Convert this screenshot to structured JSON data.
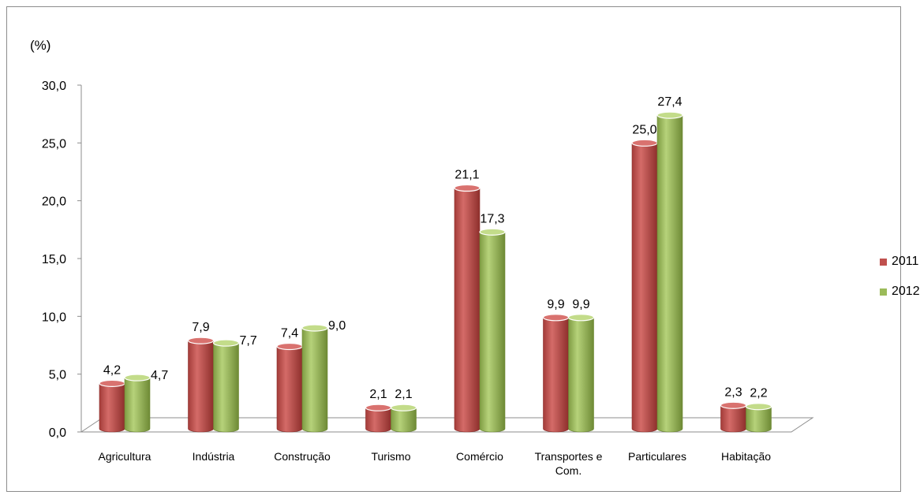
{
  "chart_data": {
    "type": "bar",
    "unit_label": "(%)",
    "categories": [
      "Agricultura",
      "Indústria",
      "Construção",
      "Turismo",
      "Comércio",
      "Transportes e|Com.",
      "Particulares",
      "Habitação"
    ],
    "series": [
      {
        "name": "2011",
        "color": "#c0504d",
        "values": [
          4.2,
          7.9,
          7.4,
          2.1,
          21.1,
          9.9,
          25.0,
          2.3
        ],
        "labels": [
          "4,2",
          "7,9",
          "7,4",
          "2,1",
          "21,1",
          "9,9",
          "25,0",
          "2,3"
        ]
      },
      {
        "name": "2012",
        "color": "#9bbb59",
        "values": [
          4.7,
          7.7,
          9.0,
          2.1,
          17.3,
          9.9,
          27.4,
          2.2
        ],
        "labels": [
          "4,7",
          "7,7",
          "9,0",
          "2,1",
          "17,3",
          "9,9",
          "27,4",
          "2,2"
        ]
      }
    ],
    "ylim": [
      0,
      30
    ],
    "yticks": [
      "0,0",
      "5,0",
      "10,0",
      "15,0",
      "20,0",
      "25,0",
      "30,0"
    ],
    "legend_position": "right",
    "grid": false
  }
}
